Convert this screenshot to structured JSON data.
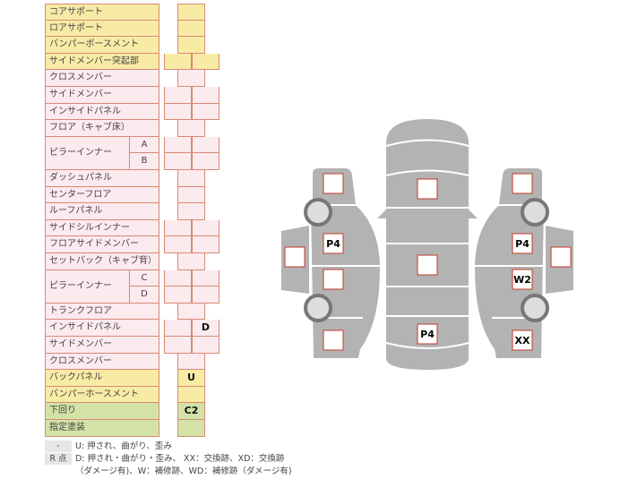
{
  "rows": [
    {
      "label": "コアサポート",
      "color": "y",
      "cells": "single",
      "values": [
        ""
      ]
    },
    {
      "label": "ロアサポート",
      "color": "y",
      "cells": "single",
      "values": [
        ""
      ]
    },
    {
      "label": "バンパーボースメント",
      "color": "y",
      "cells": "single",
      "values": [
        ""
      ]
    },
    {
      "label": "サイドメンバー突起部",
      "color": "y",
      "cells": "double",
      "values": [
        "",
        ""
      ]
    },
    {
      "label": "クロスメンバー",
      "color": "p",
      "cells": "single",
      "values": [
        ""
      ]
    },
    {
      "label": "サイドメンバー",
      "color": "p",
      "cells": "double",
      "values": [
        "",
        ""
      ]
    },
    {
      "label": "インサイドパネル",
      "color": "p",
      "cells": "double",
      "values": [
        "",
        ""
      ]
    },
    {
      "label": "フロア（キャブ床）",
      "color": "p",
      "cells": "single",
      "values": [
        ""
      ]
    },
    {
      "label": "ピラーインナー",
      "sub": "A",
      "color": "p",
      "cells": "double",
      "values": [
        "",
        ""
      ]
    },
    {
      "label": "",
      "sub": "B",
      "color": "p",
      "cells": "double",
      "values": [
        "",
        ""
      ]
    },
    {
      "label": "ダッシュパネル",
      "color": "p",
      "cells": "single",
      "values": [
        ""
      ]
    },
    {
      "label": "センターフロア",
      "color": "p",
      "cells": "single",
      "values": [
        ""
      ]
    },
    {
      "label": "ルーフパネル",
      "color": "p",
      "cells": "single",
      "values": [
        ""
      ]
    },
    {
      "label": "サイドシルインナー",
      "color": "p",
      "cells": "double",
      "values": [
        "",
        ""
      ]
    },
    {
      "label": "フロアサイドメンバー",
      "color": "p",
      "cells": "double",
      "values": [
        "",
        ""
      ]
    },
    {
      "label": "セットバック（キャブ背）",
      "color": "p",
      "cells": "single",
      "values": [
        ""
      ]
    },
    {
      "label": "ピラーインナー",
      "sub": "C",
      "color": "p",
      "cells": "double",
      "values": [
        "",
        ""
      ]
    },
    {
      "label": "",
      "sub": "D",
      "color": "p",
      "cells": "double",
      "values": [
        "",
        ""
      ]
    },
    {
      "label": "トランクフロア",
      "color": "p",
      "cells": "single",
      "values": [
        ""
      ]
    },
    {
      "label": "インサイドパネル",
      "color": "p",
      "cells": "double",
      "values": [
        "",
        "D"
      ]
    },
    {
      "label": "サイドメンバー",
      "color": "p",
      "cells": "double",
      "values": [
        "",
        ""
      ]
    },
    {
      "label": "クロスメンバー",
      "color": "p",
      "cells": "single",
      "values": [
        ""
      ]
    },
    {
      "label": "バックパネル",
      "color": "y",
      "cells": "single",
      "values": [
        "U"
      ]
    },
    {
      "label": "バンパーホースメント",
      "color": "y",
      "cells": "single",
      "values": [
        ""
      ]
    },
    {
      "label": "下回り",
      "color": "g",
      "cells": "single",
      "values": [
        "C2"
      ]
    },
    {
      "label": "指定塗装",
      "color": "g",
      "cells": "single",
      "values": [
        ""
      ]
    }
  ],
  "legend": [
    {
      "key": "-",
      "text": "U: 押され、曲がり、歪み"
    },
    {
      "key": "R 点",
      "text": "D: 押され・曲がり・歪み、 XX：交換跡、XD：交換跡"
    },
    {
      "key": "",
      "text": "（ダメージ有)、W：補修跡、WD：補修跡（ダメージ有)"
    }
  ],
  "diagram": {
    "left": {
      "front": "",
      "front_door": "P4",
      "rear_door": "",
      "rear": "",
      "mirror": ""
    },
    "center": {
      "hood": "",
      "roof": "",
      "trunk": "P4"
    },
    "right": {
      "front": "",
      "front_door": "P4",
      "rear_door": "W2",
      "rear": "XX",
      "mirror": ""
    }
  },
  "colors": {
    "yellow": "#f8eba6",
    "pink": "#fbeaee",
    "green": "#d3e3a8",
    "border": "#d98a72",
    "car": "#b3b3b3",
    "mark_border": "#c0392b"
  }
}
